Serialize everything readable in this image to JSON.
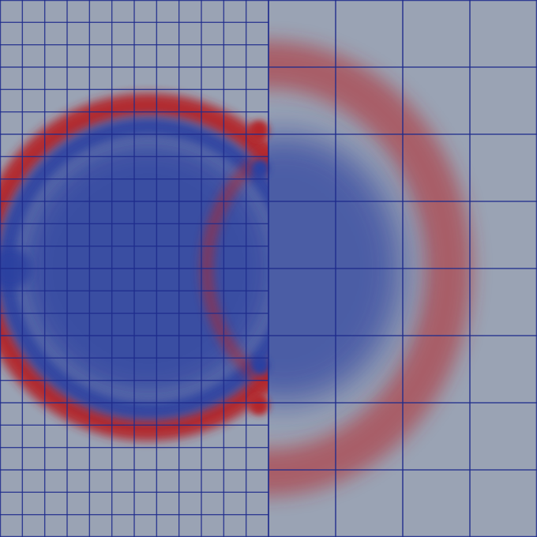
{
  "scene": {
    "background_color": "#9aa3b4",
    "mesh_line_color": "#1d2a8c",
    "fine_grid_cells": 24,
    "coarse_grid_cells": 8,
    "colormap": {
      "low": "#2a3fa0",
      "mid": "#9aa3b4",
      "high": "#b4272a"
    }
  }
}
